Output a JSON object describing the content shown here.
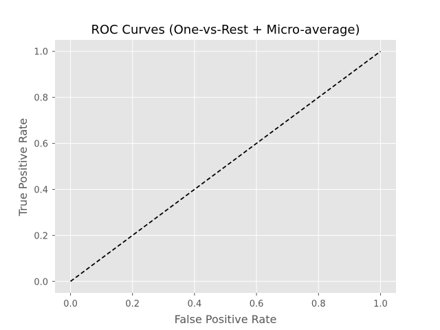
{
  "chart_data": {
    "type": "line",
    "title": "ROC Curves (One-vs-Rest + Micro-average)",
    "xlabel": "False Positive Rate",
    "ylabel": "True Positive Rate",
    "xlim": [
      -0.05,
      1.05
    ],
    "ylim": [
      -0.05,
      1.05
    ],
    "xticks": [
      0.0,
      0.2,
      0.4,
      0.6,
      0.8,
      1.0
    ],
    "xtick_labels": [
      "0.0",
      "0.2",
      "0.4",
      "0.6",
      "0.8",
      "1.0"
    ],
    "yticks": [
      0.0,
      0.2,
      0.4,
      0.6,
      0.8,
      1.0
    ],
    "ytick_labels": [
      "0.0",
      "0.2",
      "0.4",
      "0.6",
      "0.8",
      "1.0"
    ],
    "grid": true,
    "series": [
      {
        "x": [
          0.0,
          1.0
        ],
        "y": [
          0.0,
          1.0
        ],
        "style": "dashed",
        "color": "#000000"
      }
    ],
    "colors": {
      "plot_background": "#e5e5e5",
      "grid": "#ffffff",
      "tick_text": "#555555",
      "title_text": "#000000"
    }
  }
}
